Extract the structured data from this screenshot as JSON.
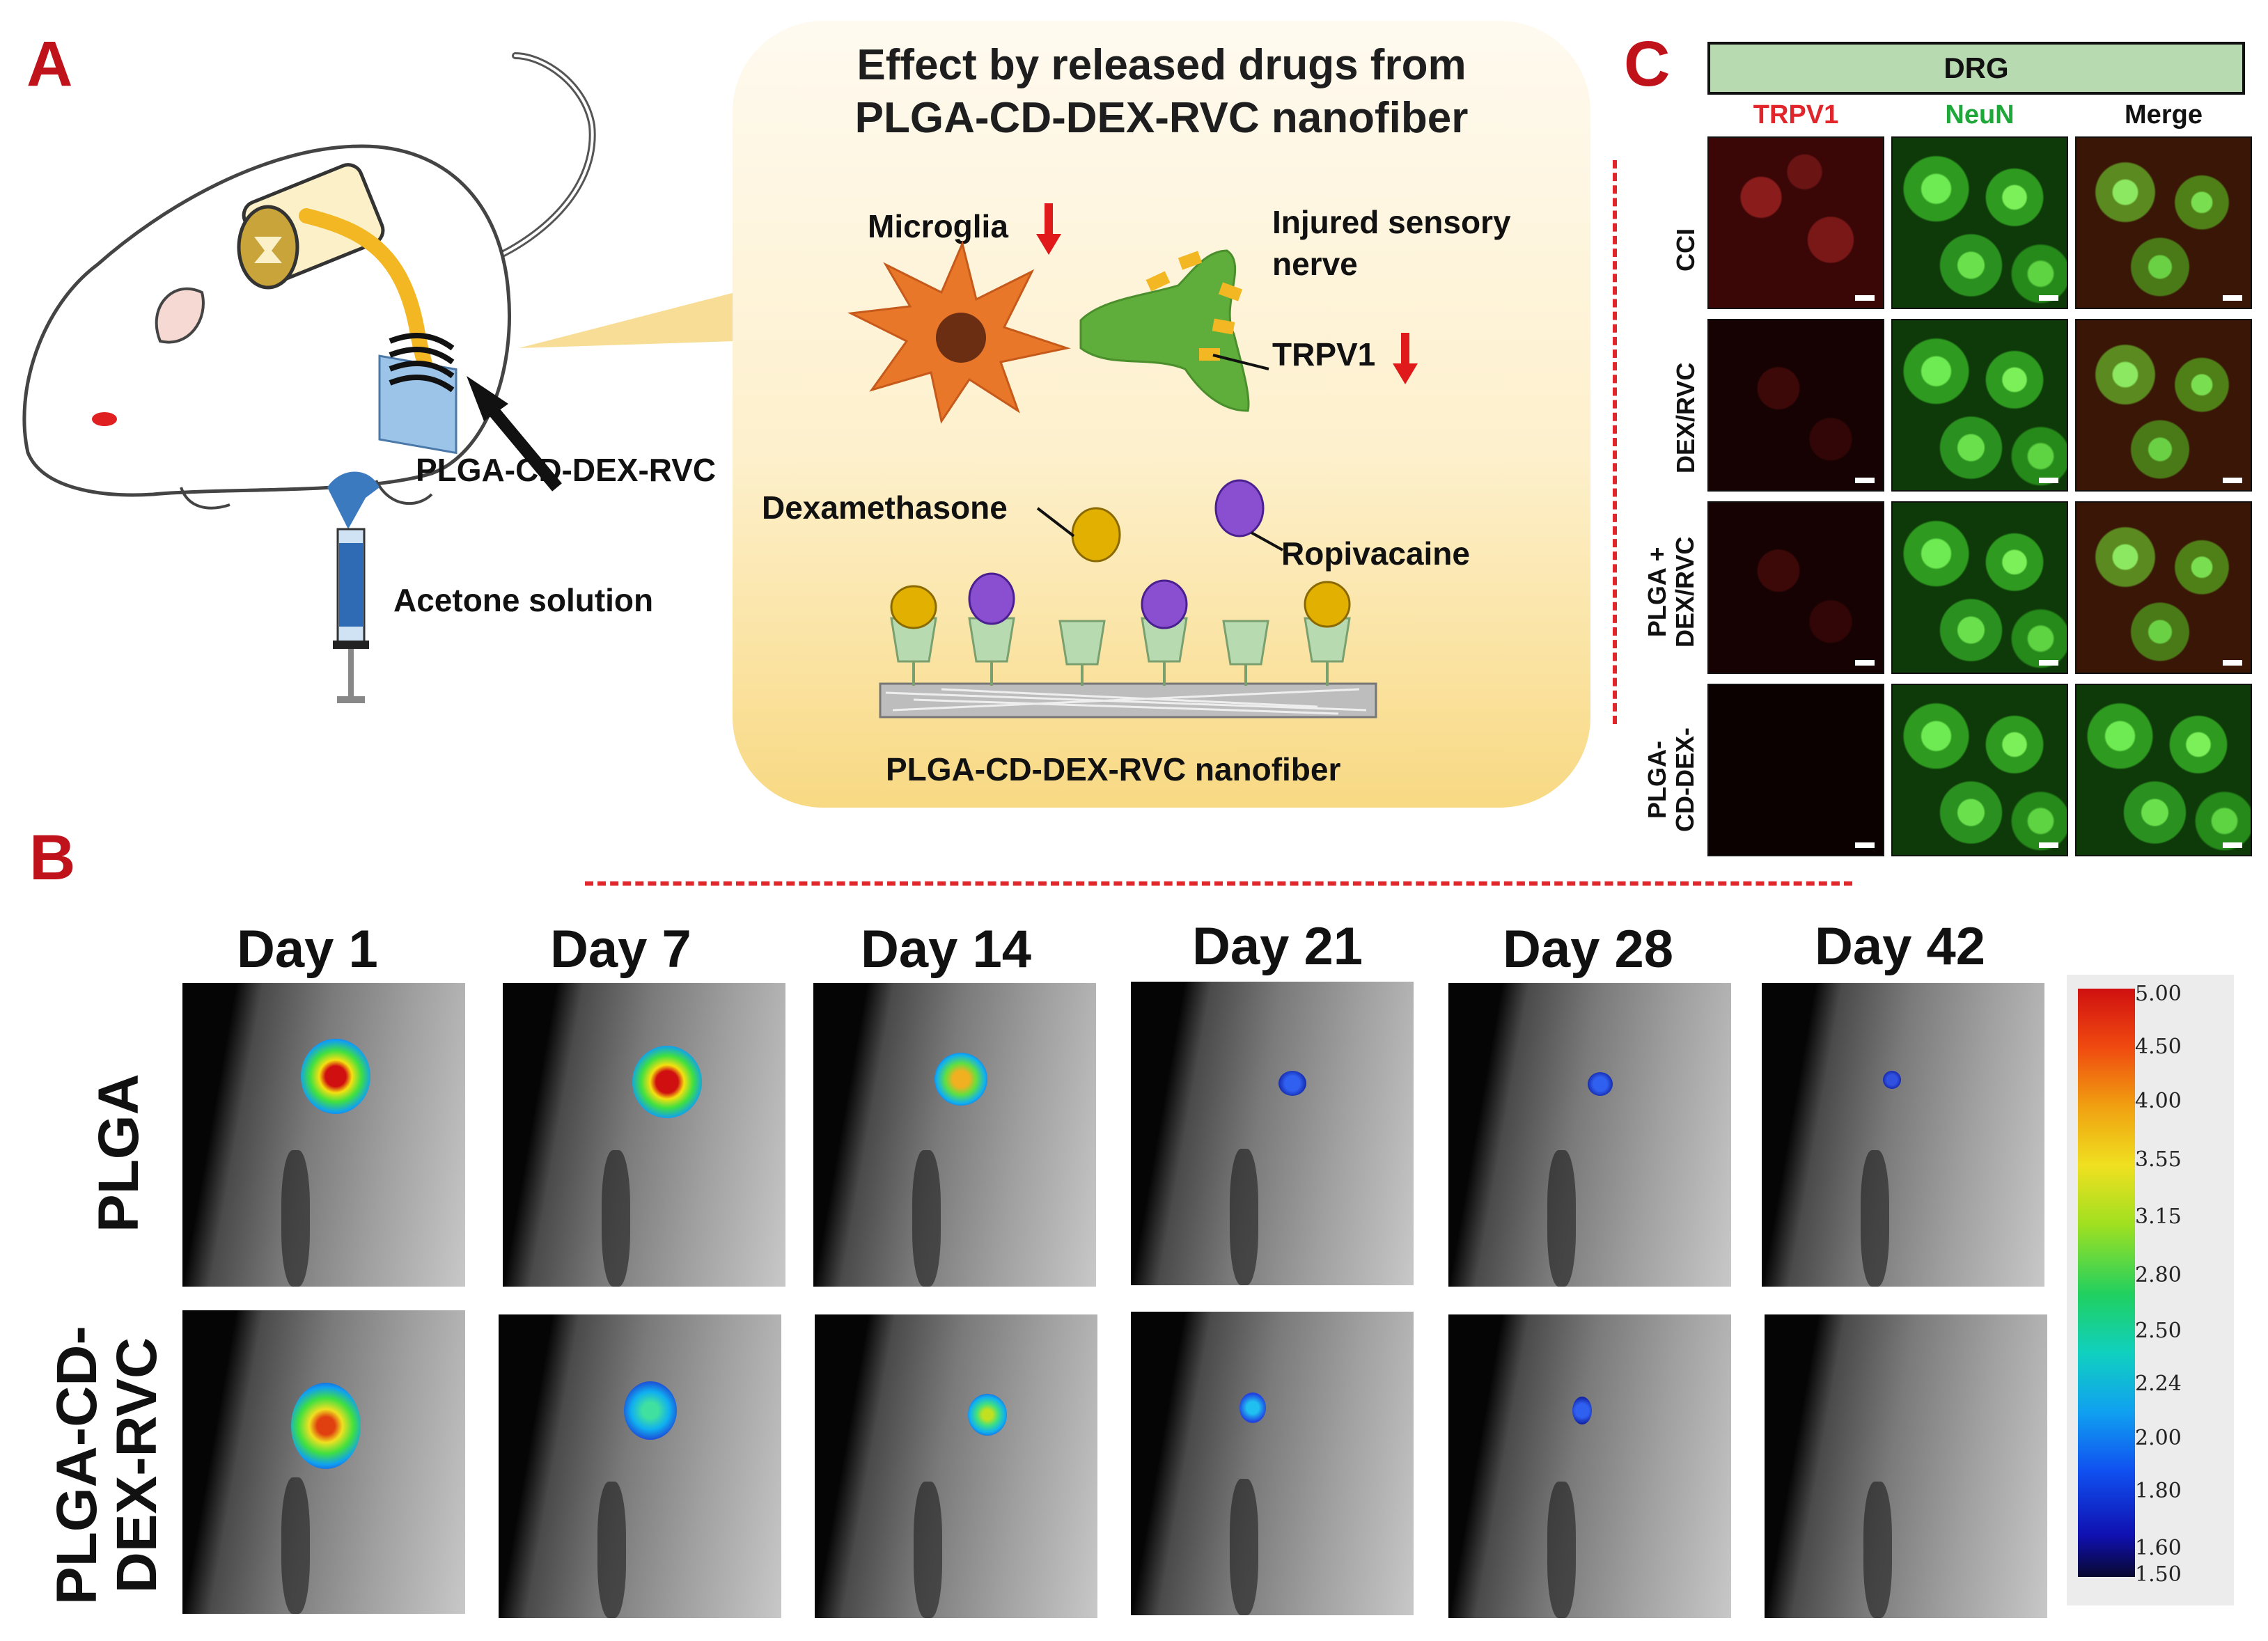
{
  "panel_labels": {
    "a": "A",
    "b": "B",
    "c": "C"
  },
  "panel_a": {
    "implant_label": "PLGA-CD-DEX-RVC",
    "injection_label": "Acetone solution",
    "box_title_line1": "Effect by released drugs from",
    "box_title_line2": "PLGA-CD-DEX-RVC nanofiber",
    "microglia_label": "Microglia",
    "nerve_label_line1": "Injured sensory",
    "nerve_label_line2": "nerve",
    "trpv1_label": "TRPV1",
    "dex_label": "Dexamethasone",
    "rvc_label": "Ropivacaine",
    "fiber_label": "PLGA-CD-DEX-RVC nanofiber",
    "colors": {
      "microglia": "#e8772a",
      "nerve": "#5fae3b",
      "dex": "#e2b000",
      "rvc": "#8a4fd0",
      "cd": "#b8dab0",
      "arrow": "#e01a1a"
    }
  },
  "panel_c": {
    "header": "DRG",
    "columns": [
      "TRPV1",
      "NeuN",
      "Merge"
    ],
    "column_colors": [
      "#e0262b",
      "#1fa83a",
      "#111111"
    ],
    "rows": [
      "CCI",
      "DEX/RVC",
      "PLGA +\nDEX/RVC",
      "PLGA-\nCD-DEX-"
    ]
  },
  "panel_b": {
    "days": [
      "Day 1",
      "Day 7",
      "Day 14",
      "Day 21",
      "Day 28",
      "Day 42"
    ],
    "rows": [
      "PLGA",
      "PLGA-CD-\nDEX-RVC"
    ],
    "colorbar_ticks": [
      "5.00",
      "4.50",
      "4.00",
      "3.55",
      "3.15",
      "2.80",
      "2.50",
      "2.24",
      "2.00",
      "1.80",
      "1.60",
      "1.50"
    ]
  }
}
